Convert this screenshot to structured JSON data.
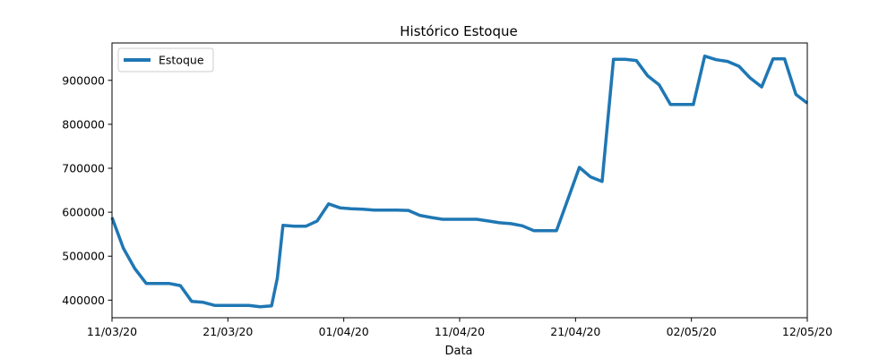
{
  "chart_data": {
    "type": "line",
    "title": "Histórico Estoque",
    "xlabel": "Data",
    "ylabel": "",
    "x_tick_labels": [
      "11/03/20",
      "21/03/20",
      "01/04/20",
      "11/04/20",
      "21/04/20",
      "02/05/20",
      "12/05/20"
    ],
    "y_ticks": [
      400000,
      500000,
      600000,
      700000,
      800000,
      900000
    ],
    "xlim": [
      0,
      61
    ],
    "ylim": [
      360000,
      985000
    ],
    "legend": {
      "position": "top-left",
      "entries": [
        "Estoque"
      ]
    },
    "grid": false,
    "series": [
      {
        "name": "Estoque",
        "color": "#1f77b4",
        "x": [
          0,
          1,
          2,
          3,
          4,
          5,
          6,
          7,
          8,
          9,
          10,
          11,
          12,
          13,
          14,
          14.5,
          15,
          16,
          17,
          18,
          19,
          20,
          21,
          22,
          23,
          24,
          25,
          26,
          27,
          28,
          29,
          30,
          31,
          32,
          33,
          34,
          35,
          36,
          37,
          38,
          39,
          40,
          41,
          42,
          43,
          44,
          45,
          46,
          47,
          48,
          49,
          50,
          51,
          52,
          53,
          54,
          55,
          56,
          57,
          58,
          59,
          60,
          61
        ],
        "y": [
          588000,
          518000,
          472000,
          438000,
          438000,
          438000,
          433000,
          397000,
          395000,
          388000,
          388000,
          388000,
          388000,
          385000,
          387000,
          450000,
          570000,
          568000,
          568000,
          580000,
          619000,
          610000,
          608000,
          607000,
          605000,
          605000,
          605000,
          604000,
          593000,
          588000,
          584000,
          584000,
          584000,
          584000,
          580000,
          576000,
          574000,
          569000,
          558000,
          558000,
          558000,
          630000,
          702000,
          680000,
          670000,
          948000,
          948000,
          945000,
          910000,
          890000,
          845000,
          845000,
          845000,
          955000,
          947000,
          943000,
          932000,
          905000,
          885000,
          949000,
          949000,
          868000,
          848000
        ]
      }
    ]
  }
}
